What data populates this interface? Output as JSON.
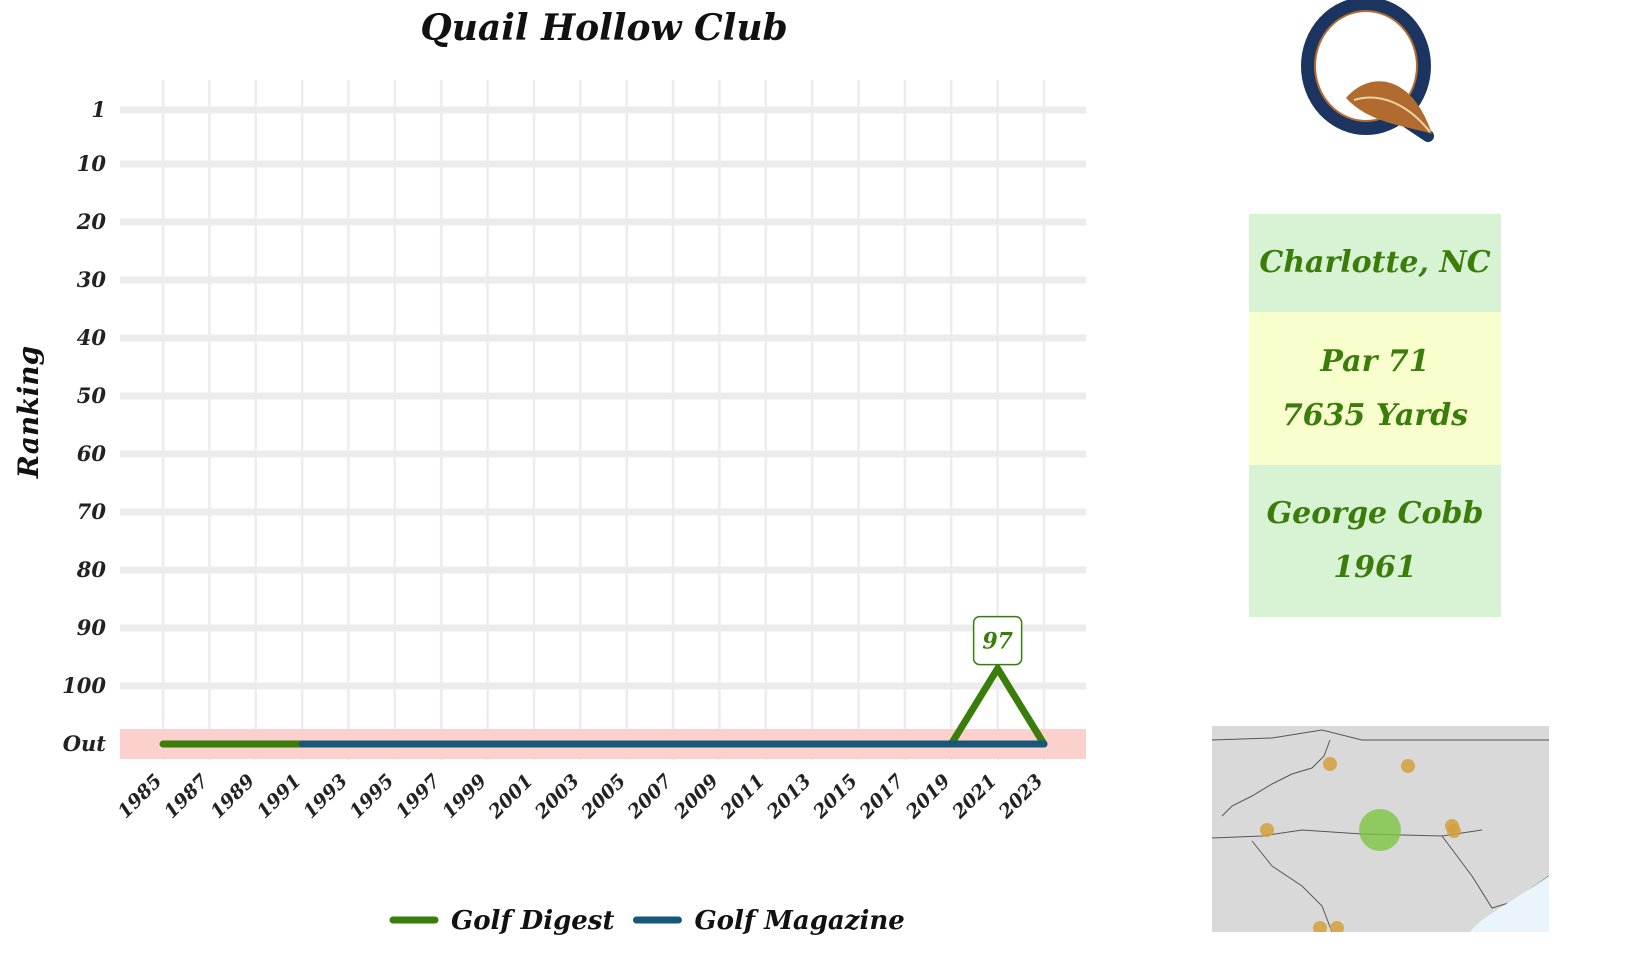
{
  "chart_data": {
    "type": "line",
    "title": "Quail Hollow Club",
    "xlabel": "",
    "ylabel": "Ranking",
    "x_ticks": [
      "1985",
      "1987",
      "1989",
      "1991",
      "1993",
      "1995",
      "1997",
      "1999",
      "2001",
      "2003",
      "2005",
      "2007",
      "2009",
      "2011",
      "2013",
      "2015",
      "2017",
      "2019",
      "2021",
      "2023"
    ],
    "y_ticks": [
      "1",
      "10",
      "20",
      "30",
      "40",
      "50",
      "60",
      "70",
      "80",
      "90",
      "100",
      "Out"
    ],
    "out_band_color": "#fcd0cc",
    "series": [
      {
        "name": "Golf Digest",
        "color": "#3a7d0a",
        "points": [
          {
            "x": 1985,
            "y": "Out"
          },
          {
            "x": 1991,
            "y": "Out"
          },
          {
            "x": 2019,
            "y": "Out"
          },
          {
            "x": 2021,
            "y": 97
          },
          {
            "x": 2023,
            "y": "Out"
          }
        ]
      },
      {
        "name": "Golf Magazine",
        "color": "#17587a",
        "points": [
          {
            "x": 1991,
            "y": "Out"
          },
          {
            "x": 2023,
            "y": "Out"
          }
        ]
      }
    ],
    "annotations": [
      {
        "x": 2021,
        "y": 97,
        "text": "97",
        "series": "Golf Digest"
      }
    ],
    "legend_position": "bottom",
    "grid": true
  },
  "info": {
    "location": "Charlotte, NC",
    "par": "Par 71",
    "yards": "7635 Yards",
    "architect": "George Cobb",
    "year": "1961"
  },
  "logo": {
    "letter": "Q",
    "icon": "quail-feather-logo",
    "colors": {
      "ring": "#1b3560",
      "feather": "#b26b2e"
    }
  },
  "map": {
    "region": "Carolinas",
    "highlight_color": "#7dc442",
    "marker_color": "#d4a03c",
    "land_color": "#d9d9d9",
    "water_color": "#e9f4fb"
  }
}
